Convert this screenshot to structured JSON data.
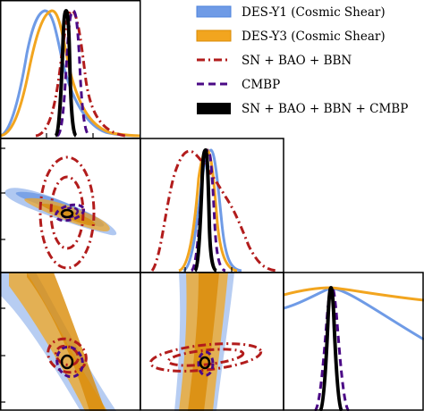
{
  "colors": {
    "des_y1": "#6f9be6",
    "des_y1_inner": "#4e83dc",
    "des_y3": "#f2a51f",
    "des_y3_inner": "#d98b06",
    "sn_bao_bbn": "#b21c1c",
    "cmbp": "#4b0a86",
    "combined": "#000000"
  },
  "legend": {
    "placement": "top-right",
    "items": [
      {
        "label": "DES-Y1 (Cosmic Shear)",
        "color": "#6f9be6",
        "style": "patch"
      },
      {
        "label": "DES-Y3 (Cosmic Shear)",
        "color": "#f2a51f",
        "style": "patch"
      },
      {
        "label": "SN + BAO + BBN",
        "color": "#b21c1c",
        "style": "dashdot"
      },
      {
        "label": "CMBP",
        "color": "#4b0a86",
        "style": "dashed"
      },
      {
        "label": "SN + BAO + BBN + CMBP",
        "color": "#000000",
        "style": "solid"
      }
    ]
  },
  "chart_data": {
    "type": "corner",
    "parameter_count": 3,
    "axis_labels": [],
    "tick_labels": [],
    "grid": false,
    "series": [
      {
        "name": "DES-Y1 (Cosmic Shear)",
        "kind": "filled-contour"
      },
      {
        "name": "DES-Y3 (Cosmic Shear)",
        "kind": "filled-contour"
      },
      {
        "name": "SN + BAO + BBN",
        "kind": "line-contour"
      },
      {
        "name": "CMBP",
        "kind": "line-contour"
      },
      {
        "name": "SN + BAO + BBN + CMBP",
        "kind": "line-contour"
      }
    ],
    "marginals": [
      {
        "param": 1,
        "des_y1_peak": 0.27,
        "des_y3_peak": 0.33,
        "sn_bao_bbn_peak": 0.55,
        "cmbp_peak": 0.52,
        "combined_peak": 0.49
      },
      {
        "param": 2,
        "des_y1_peak": 0.52,
        "des_y3_peak": 0.5,
        "sn_bao_bbn_peak": 0.35,
        "cmbp_peak": 0.52,
        "combined_peak": 0.47
      },
      {
        "param": 3,
        "des_y1_peak": 0.48,
        "des_y3_peak": 0.48,
        "sn_bao_bbn_peak": 0.46,
        "cmbp_peak": 0.46,
        "combined_peak": 0.46
      }
    ]
  }
}
